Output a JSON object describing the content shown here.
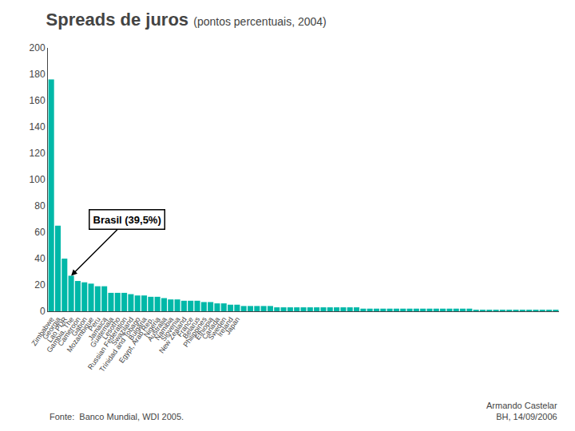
{
  "chart_data": {
    "type": "bar",
    "title": "Spreads de juros",
    "subtitle": "(pontos percentuais, 2004)",
    "source": "Fonte:  Banco Mundial, WDI 2005.",
    "author": "Armando Castelar\nBH, 14/09/2006",
    "categories": [
      "Zimbabwe",
      "Georgia",
      "Lao PDR",
      "Gambia, The",
      "Cameroon",
      "Gabon",
      "Mozambique",
      "Peru",
      "Jamaica",
      "Guatemala",
      "Lesotho",
      "Russian Federation",
      "Swaziland",
      "Trinidad and Tobago",
      "Bulgaria",
      "Egypt, Arab Rep.",
      "Nigeria",
      "Australia",
      "Namibia",
      "Slovenia",
      "New Zealand",
      "France",
      "Belarus",
      "Philippines",
      "Ethiopia",
      "Canada",
      "Sweden",
      "Ireland",
      "Japan",
      null,
      null,
      null,
      null,
      null,
      null,
      null,
      null,
      null,
      null,
      null,
      null,
      null,
      null,
      null,
      null,
      null,
      null,
      null,
      null,
      null,
      null,
      null,
      null,
      null,
      null,
      null,
      null,
      null,
      null,
      null,
      null,
      null,
      null,
      null,
      null,
      null,
      null,
      null,
      null,
      null,
      null,
      null,
      null,
      null,
      null,
      null,
      null
    ],
    "values": [
      176,
      65,
      40,
      27,
      23,
      22,
      21,
      19,
      19,
      14,
      14,
      14,
      13,
      12,
      12,
      11,
      11,
      10,
      9,
      9,
      8,
      8,
      8,
      7,
      7,
      6,
      6,
      5,
      5,
      4,
      4,
      4,
      4,
      4,
      3,
      3,
      3,
      3,
      3,
      3,
      3,
      3,
      3,
      3,
      3,
      3,
      3,
      2,
      2,
      2,
      2,
      2,
      2,
      2,
      2,
      2,
      2,
      2,
      2,
      2,
      2,
      2,
      2,
      2,
      1,
      1,
      1,
      1,
      1,
      1,
      1,
      1,
      1,
      1,
      1,
      1,
      1
    ],
    "color": "#00B8A8",
    "ylim": [
      0,
      200
    ],
    "yticks": [
      0,
      20,
      40,
      60,
      80,
      100,
      120,
      140,
      160,
      180,
      200
    ],
    "grid": false,
    "annotations": [
      {
        "text": "Brasil (39,5%)",
        "x": 3,
        "y": 27
      }
    ]
  }
}
